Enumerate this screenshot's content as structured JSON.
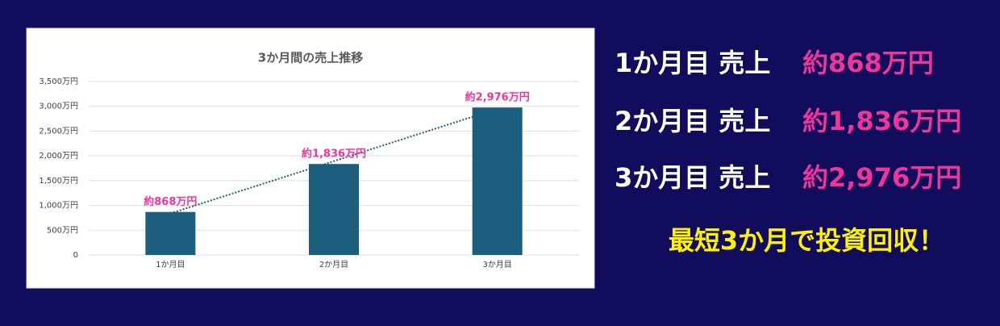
{
  "chart_data": {
    "type": "bar",
    "title": "3か月間の売上推移",
    "categories": [
      "1か月目",
      "2か月目",
      "3か月目"
    ],
    "values": [
      868,
      1836,
      2976
    ],
    "value_labels": [
      "約868万円",
      "約1,836万円",
      "約2,976万円"
    ],
    "color": "#1b5e7e",
    "label_color": "#f0359a",
    "ylim": [
      0,
      3500
    ],
    "yticks": [
      0,
      {
        "value": 500,
        "label": "500万円"
      },
      {
        "value": 1000,
        "label": "1,000万円"
      },
      {
        "value": 1500,
        "label": "1,500万円"
      },
      {
        "value": 2000,
        "label": "2,000万円"
      },
      {
        "value": 2500,
        "label": "2,500万円"
      },
      {
        "value": 3000,
        "label": "3,000万円"
      },
      {
        "value": 3500,
        "label": "3,500万円"
      }
    ],
    "grid": true,
    "trendline": true,
    "trendline_color": "#1b5e7e"
  },
  "summary": {
    "rows": [
      {
        "label": "1か月目 売上",
        "amount": "約868万円"
      },
      {
        "label": "2か月目 売上",
        "amount": "約1,836万円"
      },
      {
        "label": "3か月目 売上",
        "amount": "約2,976万円"
      }
    ],
    "tagline": "最短3か月で投資回収！"
  }
}
